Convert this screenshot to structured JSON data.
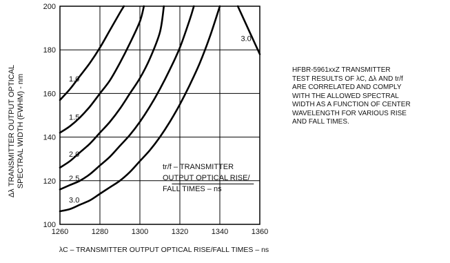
{
  "chart_data": {
    "type": "line",
    "title": "",
    "xlabel": "λC – TRANSMITTER OUTPUT OPTICAL RISE/FALL TIMES – ns",
    "ylabel": "Δλ TRANSMITTER OUTPUT OPTICAL\nSPECTRAL WIDTH (FWHM) - nm",
    "xlim": [
      1260,
      1360
    ],
    "ylim": [
      100,
      200
    ],
    "xticks": [
      "1260",
      "1280",
      "1300",
      "1320",
      "1340",
      "1360"
    ],
    "yticks": [
      "100",
      "120",
      "140",
      "160",
      "180",
      "200"
    ],
    "grid": true,
    "series": [
      {
        "name": "1.0",
        "x": [
          1260,
          1265,
          1270,
          1275,
          1280,
          1285,
          1290,
          1292
        ],
        "y": [
          157,
          162,
          168,
          174,
          181,
          189,
          197,
          200
        ]
      },
      {
        "name": "1.5",
        "x": [
          1260,
          1265,
          1270,
          1275,
          1280,
          1285,
          1290,
          1295,
          1300,
          1302
        ],
        "y": [
          142,
          145,
          149,
          154,
          160,
          166,
          174,
          183,
          193,
          200
        ]
      },
      {
        "name": "2.0",
        "x": [
          1260,
          1265,
          1270,
          1275,
          1280,
          1285,
          1290,
          1295,
          1300,
          1305,
          1310,
          1312
        ],
        "y": [
          126,
          129,
          133,
          137,
          142,
          147,
          153,
          160,
          167,
          176,
          188,
          200
        ]
      },
      {
        "name": "2.5",
        "x": [
          1260,
          1265,
          1270,
          1275,
          1280,
          1285,
          1290,
          1295,
          1300,
          1305,
          1310,
          1315,
          1320,
          1325,
          1327
        ],
        "y": [
          116,
          118,
          120,
          123,
          127,
          131,
          136,
          141,
          147,
          154,
          162,
          171,
          181,
          194,
          200
        ]
      },
      {
        "name": "3.0",
        "x": [
          1260,
          1265,
          1270,
          1275,
          1280,
          1285,
          1290,
          1295,
          1300,
          1305,
          1310,
          1315,
          1320,
          1325,
          1330,
          1335,
          1340
        ],
        "y": [
          106,
          107,
          109,
          111,
          114,
          117,
          120,
          124,
          129,
          134,
          140,
          147,
          155,
          164,
          174,
          186,
          200
        ]
      },
      {
        "name": "3.0",
        "x": [
          1349,
          1352,
          1355,
          1358,
          1360
        ],
        "y": [
          200,
          194,
          188,
          182,
          178
        ]
      }
    ],
    "annotations": {
      "note": "HFBR-5961xxZ TRANSMITTER\nTEST RESULTS OF  λC, Δλ AND tr/f\nARE CORRELATED AND  COMPLY\nWITH THE ALLOWED SPECTRAL\nWIDTH AS A FUNCTION OF CENTER\nWAVELENGTH FOR VARIOUS RISE\nAND FALL TIMES.",
      "curve_note": "tr/f – TRANSMITTER\nOUTPUT OPTICAL RISE/\nFALL TIMES – ns"
    }
  },
  "colors": {
    "line": "#000000",
    "grid": "#000000",
    "background": "#ffffff"
  }
}
